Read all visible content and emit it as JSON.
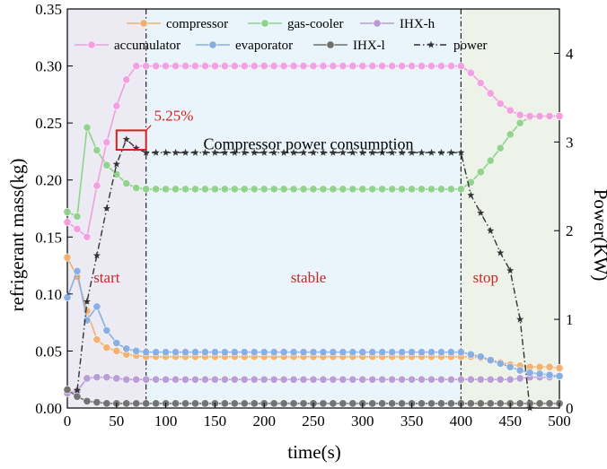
{
  "chart_data": {
    "type": "line",
    "xlabel": "time(s)",
    "ylabel_left": "refrigerant mass(kg)",
    "ylabel_right": "Power(KW)",
    "xlim": [
      0,
      500
    ],
    "ylim_left": [
      0,
      0.35
    ],
    "ylim_right": [
      0,
      4.5
    ],
    "xticks": [
      "0",
      "50",
      "100",
      "150",
      "200",
      "250",
      "300",
      "350",
      "400",
      "450",
      "500"
    ],
    "yticks_left": [
      "0.00",
      "0.05",
      "0.10",
      "0.15",
      "0.20",
      "0.25",
      "0.30",
      "0.35"
    ],
    "yticks_right": [
      "0",
      "1",
      "2",
      "3",
      "4"
    ],
    "grid": false,
    "legend_position": "top",
    "phase_labels": [
      {
        "text": "start",
        "x": 40,
        "y": 0.11
      },
      {
        "text": "stable",
        "x": 245,
        "y": 0.11
      },
      {
        "text": "stop",
        "x": 425,
        "y": 0.11
      }
    ],
    "phase_regions": [
      {
        "name": "start",
        "x0": 0,
        "x1": 80,
        "color": "#ecebf4"
      },
      {
        "name": "stable",
        "x0": 80,
        "x1": 400,
        "color": "#e9f5fb"
      },
      {
        "name": "stop",
        "x0": 400,
        "x1": 500,
        "color": "#edf3e9"
      }
    ],
    "annotations": [
      {
        "text": "5.25%",
        "x": 88,
        "y": 0.252,
        "color": "#d32121"
      },
      {
        "text": "Compressor power consumption",
        "x": 245,
        "y": 0.227,
        "color": "#000000"
      }
    ],
    "highlight_box": {
      "x0": 50,
      "x1": 80,
      "y0": 0.2265,
      "y1": 0.2435,
      "color": "#d32121"
    },
    "series": [
      {
        "name": "compressor",
        "axis": "left",
        "color": "#f2b06e",
        "marker": "circle",
        "x": [
          0,
          10,
          20,
          30,
          40,
          50,
          60,
          70,
          80,
          90,
          100,
          110,
          120,
          130,
          140,
          150,
          160,
          170,
          180,
          190,
          200,
          210,
          220,
          230,
          240,
          250,
          260,
          270,
          280,
          290,
          300,
          310,
          320,
          330,
          340,
          350,
          360,
          370,
          380,
          390,
          400,
          410,
          420,
          430,
          440,
          450,
          460,
          470,
          480,
          490,
          500
        ],
        "y": [
          0.132,
          0.115,
          0.085,
          0.06,
          0.053,
          0.05,
          0.047,
          0.046,
          0.045,
          0.045,
          0.045,
          0.045,
          0.045,
          0.045,
          0.045,
          0.045,
          0.045,
          0.045,
          0.045,
          0.045,
          0.045,
          0.045,
          0.045,
          0.045,
          0.045,
          0.045,
          0.045,
          0.045,
          0.045,
          0.045,
          0.045,
          0.045,
          0.045,
          0.045,
          0.045,
          0.045,
          0.045,
          0.045,
          0.045,
          0.045,
          0.045,
          0.045,
          0.044,
          0.042,
          0.04,
          0.038,
          0.037,
          0.036,
          0.036,
          0.036,
          0.035
        ]
      },
      {
        "name": "gas-cooler",
        "axis": "left",
        "color": "#8fd28a",
        "marker": "circle",
        "x": [
          0,
          10,
          20,
          30,
          40,
          50,
          60,
          70,
          80,
          90,
          100,
          110,
          120,
          130,
          140,
          150,
          160,
          170,
          180,
          190,
          200,
          210,
          220,
          230,
          240,
          250,
          260,
          270,
          280,
          290,
          300,
          310,
          320,
          330,
          340,
          350,
          360,
          370,
          380,
          390,
          400,
          410,
          420,
          430,
          440,
          450,
          460,
          470,
          480,
          490,
          500
        ],
        "y": [
          0.172,
          0.168,
          0.246,
          0.226,
          0.213,
          0.205,
          0.197,
          0.193,
          0.192,
          0.192,
          0.192,
          0.192,
          0.192,
          0.192,
          0.192,
          0.192,
          0.192,
          0.192,
          0.192,
          0.192,
          0.192,
          0.192,
          0.192,
          0.192,
          0.192,
          0.192,
          0.192,
          0.192,
          0.192,
          0.192,
          0.192,
          0.192,
          0.192,
          0.192,
          0.192,
          0.192,
          0.192,
          0.192,
          0.192,
          0.192,
          0.192,
          0.198,
          0.207,
          0.217,
          0.228,
          0.24,
          0.25,
          0.255,
          0.256,
          0.256,
          0.256
        ]
      },
      {
        "name": "IHX-h",
        "axis": "left",
        "color": "#b89bd6",
        "marker": "circle",
        "x": [
          0,
          10,
          20,
          30,
          40,
          50,
          60,
          70,
          80,
          90,
          100,
          110,
          120,
          130,
          140,
          150,
          160,
          170,
          180,
          190,
          200,
          210,
          220,
          230,
          240,
          250,
          260,
          270,
          280,
          290,
          300,
          310,
          320,
          330,
          340,
          350,
          360,
          370,
          380,
          390,
          400,
          410,
          420,
          430,
          440,
          450,
          460,
          470,
          480,
          490,
          500
        ],
        "y": [
          0.013,
          0.015,
          0.026,
          0.027,
          0.027,
          0.026,
          0.025,
          0.025,
          0.025,
          0.025,
          0.025,
          0.025,
          0.025,
          0.025,
          0.025,
          0.025,
          0.025,
          0.025,
          0.025,
          0.025,
          0.025,
          0.025,
          0.025,
          0.025,
          0.025,
          0.025,
          0.025,
          0.025,
          0.025,
          0.025,
          0.025,
          0.025,
          0.025,
          0.025,
          0.025,
          0.025,
          0.025,
          0.025,
          0.025,
          0.025,
          0.025,
          0.025,
          0.025,
          0.025,
          0.025,
          0.025,
          0.026,
          0.027,
          0.027,
          0.027,
          0.028
        ]
      },
      {
        "name": "accumulator",
        "axis": "left",
        "color": "#f29ee0",
        "marker": "circle",
        "x": [
          0,
          10,
          20,
          30,
          40,
          50,
          60,
          70,
          80,
          90,
          100,
          110,
          120,
          130,
          140,
          150,
          160,
          170,
          180,
          190,
          200,
          210,
          220,
          230,
          240,
          250,
          260,
          270,
          280,
          290,
          300,
          310,
          320,
          330,
          340,
          350,
          360,
          370,
          380,
          390,
          400,
          410,
          420,
          430,
          440,
          450,
          460,
          470,
          480,
          490,
          500
        ],
        "y": [
          0.163,
          0.157,
          0.15,
          0.195,
          0.233,
          0.265,
          0.288,
          0.3,
          0.3,
          0.3,
          0.3,
          0.3,
          0.3,
          0.3,
          0.3,
          0.3,
          0.3,
          0.3,
          0.3,
          0.3,
          0.3,
          0.3,
          0.3,
          0.3,
          0.3,
          0.3,
          0.3,
          0.3,
          0.3,
          0.3,
          0.3,
          0.3,
          0.3,
          0.3,
          0.3,
          0.3,
          0.3,
          0.3,
          0.3,
          0.3,
          0.3,
          0.294,
          0.285,
          0.276,
          0.267,
          0.261,
          0.257,
          0.256,
          0.256,
          0.256,
          0.256
        ]
      },
      {
        "name": "evaporator",
        "axis": "left",
        "color": "#86aee3",
        "marker": "circle",
        "x": [
          0,
          10,
          20,
          30,
          40,
          50,
          60,
          70,
          80,
          90,
          100,
          110,
          120,
          130,
          140,
          150,
          160,
          170,
          180,
          190,
          200,
          210,
          220,
          230,
          240,
          250,
          260,
          270,
          280,
          290,
          300,
          310,
          320,
          330,
          340,
          350,
          360,
          370,
          380,
          390,
          400,
          410,
          420,
          430,
          440,
          450,
          460,
          470,
          480,
          490,
          500
        ],
        "y": [
          0.097,
          0.12,
          0.077,
          0.089,
          0.068,
          0.057,
          0.052,
          0.05,
          0.049,
          0.049,
          0.049,
          0.049,
          0.049,
          0.049,
          0.049,
          0.049,
          0.049,
          0.049,
          0.049,
          0.049,
          0.049,
          0.049,
          0.049,
          0.049,
          0.049,
          0.049,
          0.049,
          0.049,
          0.049,
          0.049,
          0.049,
          0.049,
          0.049,
          0.049,
          0.049,
          0.049,
          0.049,
          0.049,
          0.049,
          0.049,
          0.049,
          0.047,
          0.045,
          0.042,
          0.039,
          0.036,
          0.033,
          0.031,
          0.03,
          0.029,
          0.028
        ]
      },
      {
        "name": "IHX-l",
        "axis": "left",
        "color": "#6f6f6f",
        "marker": "circle",
        "x": [
          0,
          10,
          20,
          30,
          40,
          50,
          60,
          70,
          80,
          90,
          100,
          110,
          120,
          130,
          140,
          150,
          160,
          170,
          180,
          190,
          200,
          210,
          220,
          230,
          240,
          250,
          260,
          270,
          280,
          290,
          300,
          310,
          320,
          330,
          340,
          350,
          360,
          370,
          380,
          390,
          400,
          410,
          420,
          430,
          440,
          450,
          460,
          470,
          480,
          490,
          500
        ],
        "y": [
          0.016,
          0.01,
          0.006,
          0.005,
          0.004,
          0.004,
          0.004,
          0.004,
          0.004,
          0.004,
          0.004,
          0.004,
          0.004,
          0.004,
          0.004,
          0.004,
          0.004,
          0.004,
          0.004,
          0.004,
          0.004,
          0.004,
          0.004,
          0.004,
          0.004,
          0.004,
          0.004,
          0.004,
          0.004,
          0.004,
          0.004,
          0.004,
          0.004,
          0.004,
          0.004,
          0.004,
          0.004,
          0.004,
          0.004,
          0.004,
          0.004,
          0.004,
          0.004,
          0.004,
          0.004,
          0.004,
          0.004,
          0.004,
          0.004,
          0.004,
          0.004
        ]
      },
      {
        "name": "power",
        "axis": "right",
        "color": "#333333",
        "marker": "star",
        "x": [
          10,
          20,
          30,
          40,
          50,
          60,
          70,
          80,
          90,
          100,
          110,
          120,
          130,
          140,
          150,
          160,
          170,
          180,
          190,
          200,
          210,
          220,
          230,
          240,
          250,
          260,
          270,
          280,
          290,
          300,
          310,
          320,
          330,
          340,
          350,
          360,
          370,
          380,
          390,
          400,
          410,
          420,
          430,
          440,
          450,
          460,
          470
        ],
        "y": [
          0.2,
          1.2,
          1.72,
          2.25,
          2.75,
          3.03,
          2.93,
          2.88,
          2.88,
          2.88,
          2.88,
          2.88,
          2.88,
          2.88,
          2.88,
          2.88,
          2.88,
          2.88,
          2.88,
          2.88,
          2.88,
          2.88,
          2.88,
          2.88,
          2.88,
          2.88,
          2.88,
          2.88,
          2.88,
          2.88,
          2.88,
          2.88,
          2.88,
          2.88,
          2.88,
          2.88,
          2.88,
          2.88,
          2.88,
          2.88,
          2.4,
          2.2,
          2.0,
          1.75,
          1.55,
          1.0,
          0.0
        ]
      }
    ]
  }
}
